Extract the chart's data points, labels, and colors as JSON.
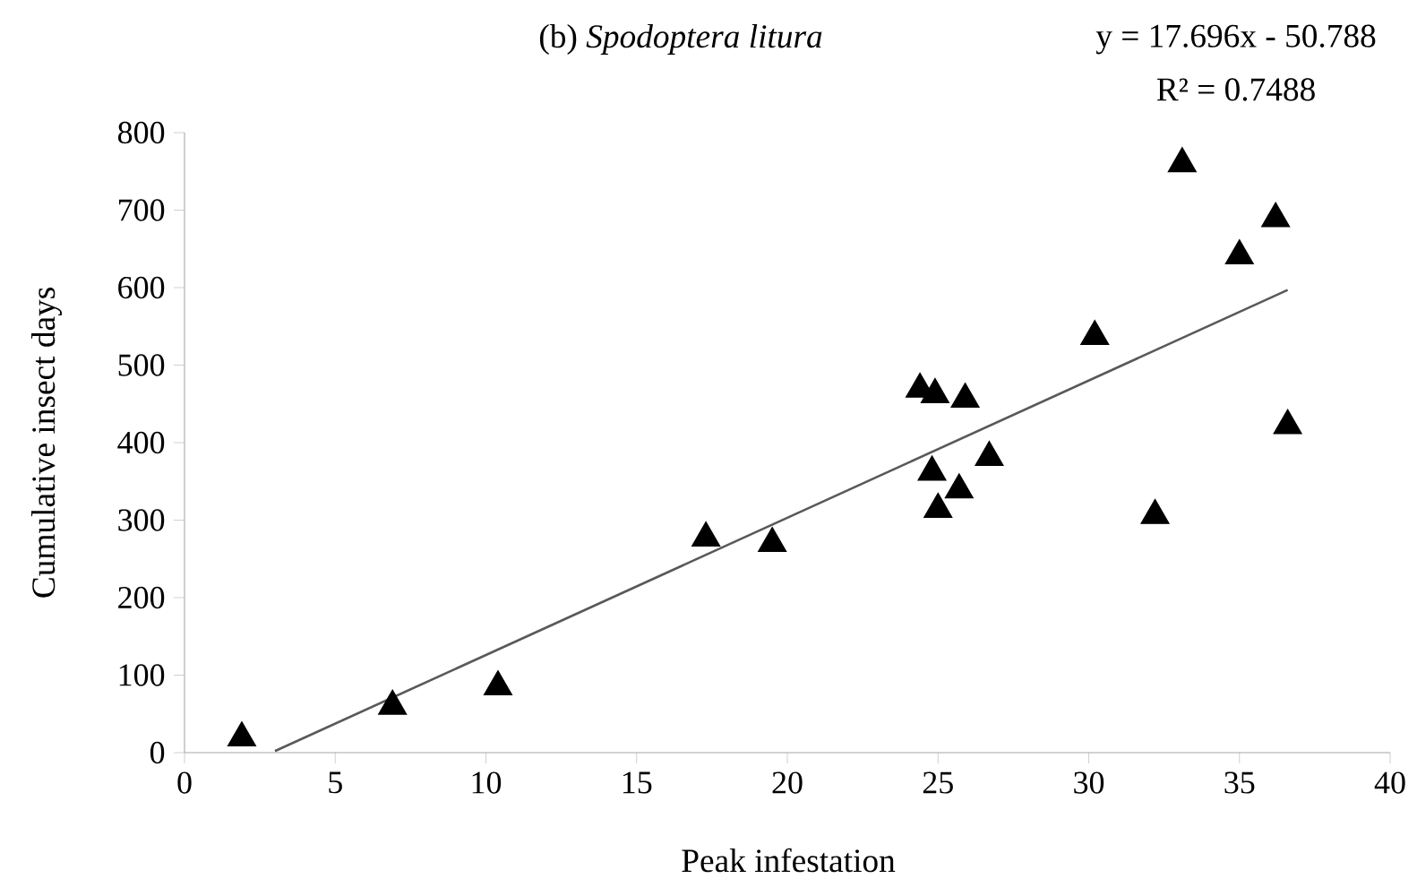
{
  "chart_data": {
    "type": "scatter",
    "title": "(b) *Spodoptera litura*",
    "xlabel": "Peak infestation",
    "ylabel": "Cumulative insect  days",
    "annotations": [
      "y = 17.696x - 50.788",
      "R² = 0.7488"
    ],
    "xlim": [
      0,
      40
    ],
    "xticks": [
      0,
      5,
      10,
      15,
      20,
      25,
      30,
      35,
      40
    ],
    "ylim": [
      0,
      800
    ],
    "yticks": [
      0,
      100,
      200,
      300,
      400,
      500,
      600,
      700,
      800
    ],
    "grid": false,
    "series": [
      {
        "color": "#000000",
        "marker": "triangle",
        "x": [
          1.9,
          6.9,
          10.4,
          17.3,
          19.5,
          24.4,
          24.9,
          25.9,
          24.8,
          25.7,
          25.0,
          26.7,
          30.2,
          32.2,
          33.1,
          35.0,
          36.2,
          36.6
        ],
        "values": [
          19,
          60,
          85,
          277,
          270,
          469,
          462,
          456,
          362,
          339,
          314,
          381,
          537,
          306,
          760,
          641,
          689,
          422
        ]
      },
      {
        "type": "line",
        "color": "#595959",
        "marker": "none",
        "line_style": "solid",
        "x": [
          3.0,
          36.6
        ],
        "values": [
          2,
          597
        ]
      }
    ]
  }
}
